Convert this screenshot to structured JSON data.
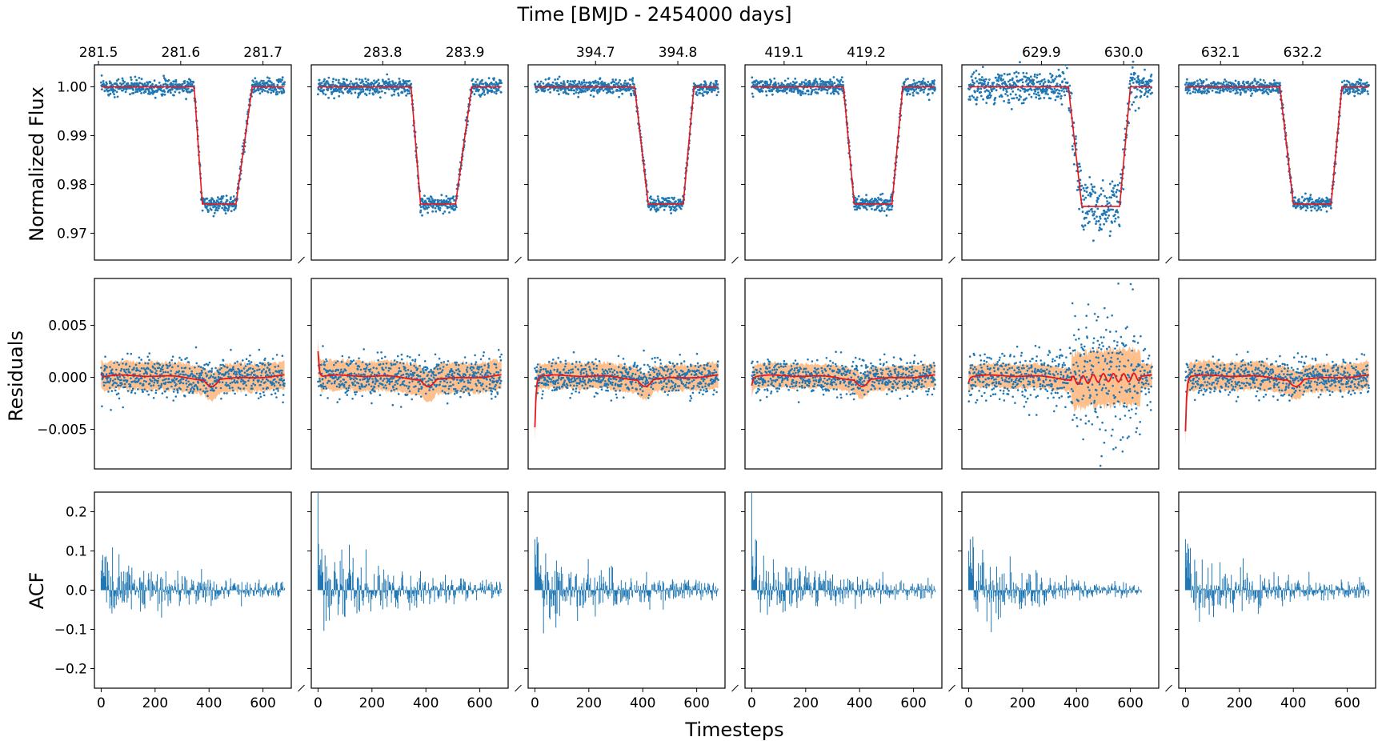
{
  "figure": {
    "top_title": "Time [BMJD - 2454000 days]",
    "bottom_xlabel": "Timesteps",
    "row_ylabels": [
      "Normalized Flux",
      "Residuals",
      "ACF"
    ]
  },
  "colors": {
    "data_points": "#1f77b4",
    "model_line": "#e8171b",
    "band": "#ffb57a",
    "bars": "#1f77b4",
    "axis": "#000000"
  },
  "chart_data": [
    {
      "type": "scatter",
      "row": "Normalized Flux",
      "ylim": [
        0.9645,
        1.0045
      ],
      "y_ticks": [
        0.97,
        0.98,
        0.99,
        1.0
      ],
      "y_tick_labels": [
        "0.97",
        "0.98",
        "0.99",
        "1.00"
      ],
      "x_timesteps": [
        0,
        680
      ],
      "series": [
        {
          "kind": "points",
          "description_of_values": "normalized flux per timestep"
        },
        {
          "kind": "model",
          "values_by_panel": "transit model"
        }
      ],
      "transits": [
        {
          "panel": 1,
          "depth_level": 0.976,
          "ingress": [
            345,
            375
          ],
          "bottom": [
            375,
            500
          ],
          "egress": [
            500,
            560
          ],
          "noise": 0.0009,
          "tick_labels": [
            "281.5",
            "281.6",
            "281.7"
          ],
          "tick_timesteps": [
            -10,
            295,
            600
          ]
        },
        {
          "panel": 2,
          "depth_level": 0.976,
          "ingress": [
            345,
            380
          ],
          "bottom": [
            380,
            510
          ],
          "egress": [
            510,
            570
          ],
          "noise": 0.0009,
          "tick_labels": [
            "283.8",
            "283.9"
          ],
          "tick_timesteps": [
            240,
            545
          ]
        },
        {
          "panel": 3,
          "depth_level": 0.976,
          "ingress": [
            370,
            420
          ],
          "bottom": [
            420,
            550
          ],
          "egress": [
            550,
            590
          ],
          "noise": 0.0008,
          "tick_labels": [
            "394.7",
            "394.8"
          ],
          "tick_timesteps": [
            225,
            530
          ]
        },
        {
          "panel": 4,
          "depth_level": 0.976,
          "ingress": [
            340,
            380
          ],
          "bottom": [
            380,
            520
          ],
          "egress": [
            520,
            560
          ],
          "noise": 0.0008,
          "tick_labels": [
            "419.1",
            "419.2"
          ],
          "tick_timesteps": [
            120,
            425
          ]
        },
        {
          "panel": 5,
          "depth_level": 0.9755,
          "ingress": [
            370,
            420
          ],
          "bottom": [
            420,
            560
          ],
          "egress": [
            560,
            600
          ],
          "noise": 0.0018,
          "tick_labels": [
            "629.9",
            "630.0"
          ],
          "tick_timesteps": [
            270,
            575
          ]
        },
        {
          "panel": 6,
          "depth_level": 0.976,
          "ingress": [
            350,
            400
          ],
          "bottom": [
            400,
            540
          ],
          "egress": [
            540,
            580
          ],
          "noise": 0.0008,
          "tick_labels": [
            "632.1",
            "632.2"
          ],
          "tick_timesteps": [
            130,
            435
          ]
        }
      ]
    },
    {
      "type": "scatter",
      "row": "Residuals",
      "ylim": [
        -0.0088,
        0.0095
      ],
      "y_ticks": [
        -0.005,
        0.0,
        0.005
      ],
      "y_tick_labels": [
        "−0.005",
        "0.000",
        "0.005"
      ],
      "panels": [
        {
          "panel": 1,
          "noise": 0.0009,
          "band_width": 0.0014,
          "start_spike": 0.0003
        },
        {
          "panel": 2,
          "noise": 0.0009,
          "band_width": 0.0015,
          "start_spike": 0.0025
        },
        {
          "panel": 3,
          "noise": 0.0008,
          "band_width": 0.0013,
          "start_spike": -0.0048
        },
        {
          "panel": 4,
          "noise": 0.0008,
          "band_width": 0.0012,
          "start_spike": -0.0008
        },
        {
          "panel": 5,
          "noise": 0.0012,
          "band_width": 0.0012,
          "start_spike": -0.0005,
          "noisy_region": [
            380,
            640
          ],
          "noisy_noise": 0.0032,
          "noisy_band": 0.0028
        },
        {
          "panel": 6,
          "noise": 0.0008,
          "band_width": 0.0014,
          "start_spike": -0.0052
        }
      ]
    },
    {
      "type": "bar",
      "row": "ACF",
      "ylim": [
        -0.25,
        0.25
      ],
      "y_ticks": [
        -0.2,
        -0.1,
        0.0,
        0.1,
        0.2
      ],
      "y_tick_labels": [
        "−0.2",
        "−0.1",
        "0.0",
        "0.1",
        "0.2"
      ],
      "x_ticks": [
        0,
        200,
        400,
        600
      ],
      "x_tick_labels": [
        "0",
        "200",
        "400",
        "600"
      ],
      "panels": [
        {
          "panel": 1,
          "first_value": 0.05,
          "amplitude": 0.045,
          "decay_to": 0.01,
          "length": 680
        },
        {
          "panel": 2,
          "first_value": 0.25,
          "amplitude": 0.045,
          "decay_to": 0.01,
          "length": 680
        },
        {
          "panel": 3,
          "first_value": 0.13,
          "amplitude": 0.05,
          "decay_to": 0.01,
          "length": 680
        },
        {
          "panel": 4,
          "first_value": 0.25,
          "amplitude": 0.04,
          "decay_to": 0.01,
          "length": 680
        },
        {
          "panel": 5,
          "first_value": 0.1,
          "amplitude": 0.05,
          "decay_to": 0.005,
          "length": 640
        },
        {
          "panel": 6,
          "first_value": 0.13,
          "amplitude": 0.045,
          "decay_to": 0.01,
          "length": 680
        }
      ]
    }
  ]
}
